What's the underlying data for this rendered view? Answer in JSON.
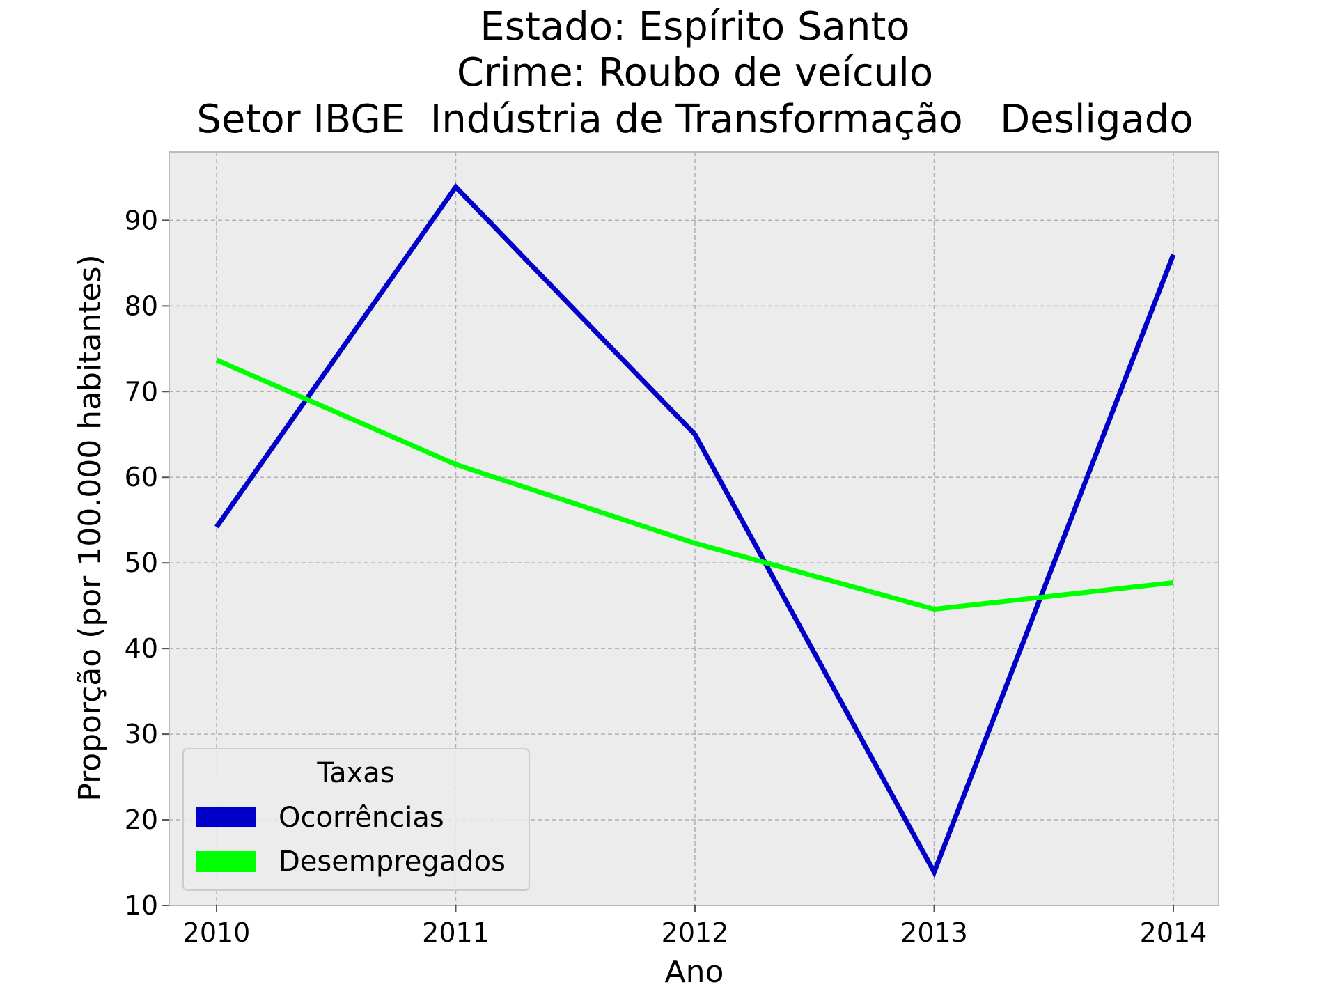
{
  "chart_data": {
    "type": "line",
    "title_lines": [
      "Estado: Espírito Santo",
      "Crime: Roubo de veículo",
      "Setor IBGE  Indústria de Transformação   Desligado"
    ],
    "xlabel": "Ano",
    "ylabel": "Proporção (por 100.000 habitantes)",
    "x": [
      "2010",
      "2011",
      "2012",
      "2013",
      "2014"
    ],
    "y_ticks": [
      10,
      20,
      30,
      40,
      50,
      60,
      70,
      80,
      90
    ],
    "ylim": [
      10,
      98
    ],
    "grid": true,
    "legend": {
      "title": "Taxas",
      "placement": "lower-left"
    },
    "series": [
      {
        "name": "Ocorrências",
        "color": "#0000c8",
        "values": [
          54.2,
          93.9,
          65.0,
          13.9,
          86.0
        ]
      },
      {
        "name": "Desempregados",
        "color": "#00ff00",
        "values": [
          73.7,
          61.5,
          52.3,
          44.6,
          47.7
        ]
      }
    ]
  }
}
